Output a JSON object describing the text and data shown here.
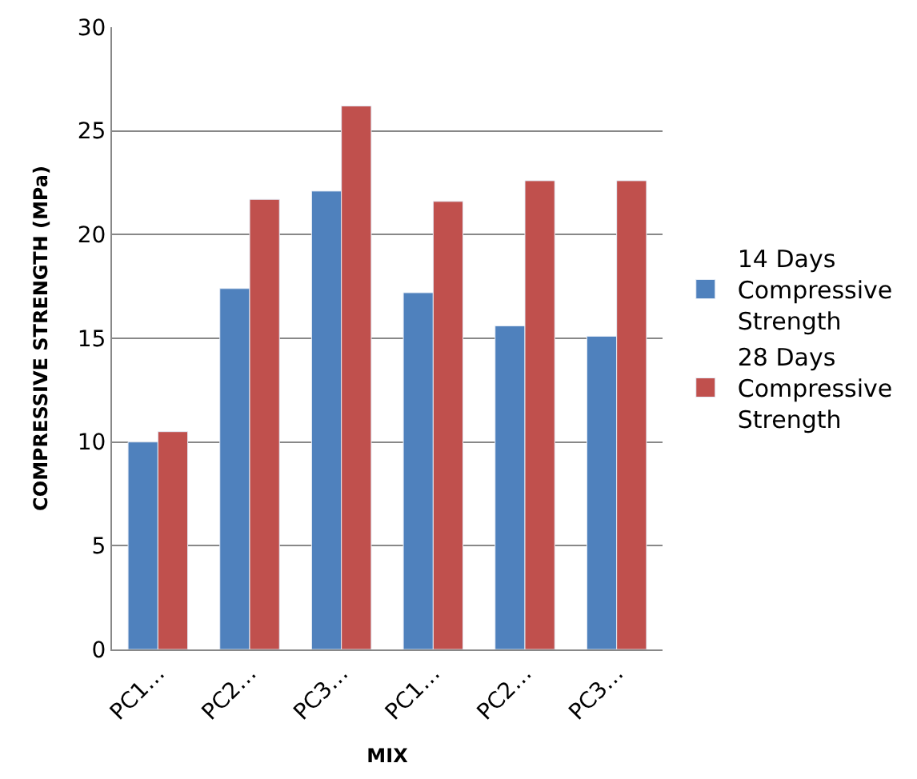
{
  "chart_data": {
    "type": "bar",
    "xlabel": "MIX",
    "ylabel": "COMPRESSIVE STRENGTH (MPa)",
    "categories": [
      "PC1…",
      "PC2…",
      "PC3…",
      "PC1…",
      "PC2…",
      "PC3…"
    ],
    "series": [
      {
        "name": "14 Days Compressive Strength",
        "color": "#4f81bd",
        "values": [
          10.0,
          17.4,
          22.1,
          17.2,
          15.6,
          15.1
        ]
      },
      {
        "name": "28 Days Compressive Strength",
        "color": "#c0504d",
        "values": [
          10.5,
          21.7,
          26.2,
          21.6,
          22.6,
          22.6
        ]
      }
    ],
    "ylim": [
      0,
      30
    ],
    "yticks": [
      0,
      5,
      10,
      15,
      20,
      25,
      30
    ],
    "grid": "y",
    "legend": "right"
  }
}
